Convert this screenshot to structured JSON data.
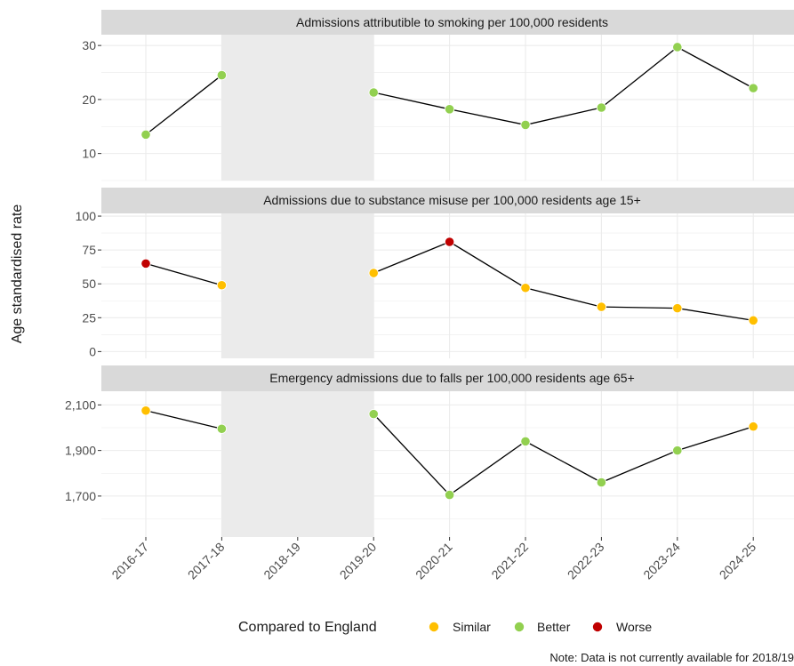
{
  "chart_data": {
    "type": "line",
    "ylabel": "Age standardised rate",
    "categories": [
      "2016-17",
      "2017-18",
      "2018-19",
      "2019-20",
      "2020-21",
      "2021-22",
      "2022-23",
      "2023-24",
      "2024-25"
    ],
    "unavailable_period": [
      "2017-18",
      "2019-20"
    ],
    "panels": [
      {
        "title": "Admissions attributible to smoking per 100,000 residents",
        "ylim": [
          5,
          32
        ],
        "yticks": [
          10,
          20,
          30
        ],
        "ytick_labels": [
          "10",
          "20",
          "30"
        ],
        "values": [
          13.5,
          24.5,
          null,
          21.3,
          18.2,
          15.3,
          18.5,
          29.7,
          22.1
        ],
        "status": [
          "Better",
          "Better",
          null,
          "Better",
          "Better",
          "Better",
          "Better",
          "Better",
          "Better"
        ]
      },
      {
        "title": "Admissions due to substance misuse per 100,000 residents age 15+",
        "ylim": [
          -5,
          102
        ],
        "yticks": [
          0,
          25,
          50,
          75,
          100
        ],
        "ytick_labels": [
          "0",
          "25",
          "50",
          "75",
          "100"
        ],
        "values": [
          65,
          49,
          null,
          58,
          81,
          47,
          33,
          32,
          23
        ],
        "status": [
          "Worse",
          "Similar",
          null,
          "Similar",
          "Worse",
          "Similar",
          "Similar",
          "Similar",
          "Similar"
        ]
      },
      {
        "title": "Emergency admissions due to falls per 100,000 residents age 65+",
        "ylim": [
          1520,
          2160
        ],
        "yticks": [
          1700,
          1900,
          2100
        ],
        "ytick_labels": [
          "1,700",
          "1,900",
          "2,100"
        ],
        "values": [
          2075,
          1995,
          null,
          2060,
          1705,
          1940,
          1760,
          1900,
          2005
        ],
        "status": [
          "Similar",
          "Better",
          null,
          "Better",
          "Better",
          "Better",
          "Better",
          "Better",
          "Similar"
        ]
      }
    ],
    "legend": {
      "title": "Compared to England",
      "position": "bottom",
      "items": [
        {
          "label": "Similar",
          "color": "#FFBF00"
        },
        {
          "label": "Better",
          "color": "#92D050"
        },
        {
          "label": "Worse",
          "color": "#C00000"
        }
      ]
    },
    "note": "Note: Data is not currently available for 2018/19"
  }
}
